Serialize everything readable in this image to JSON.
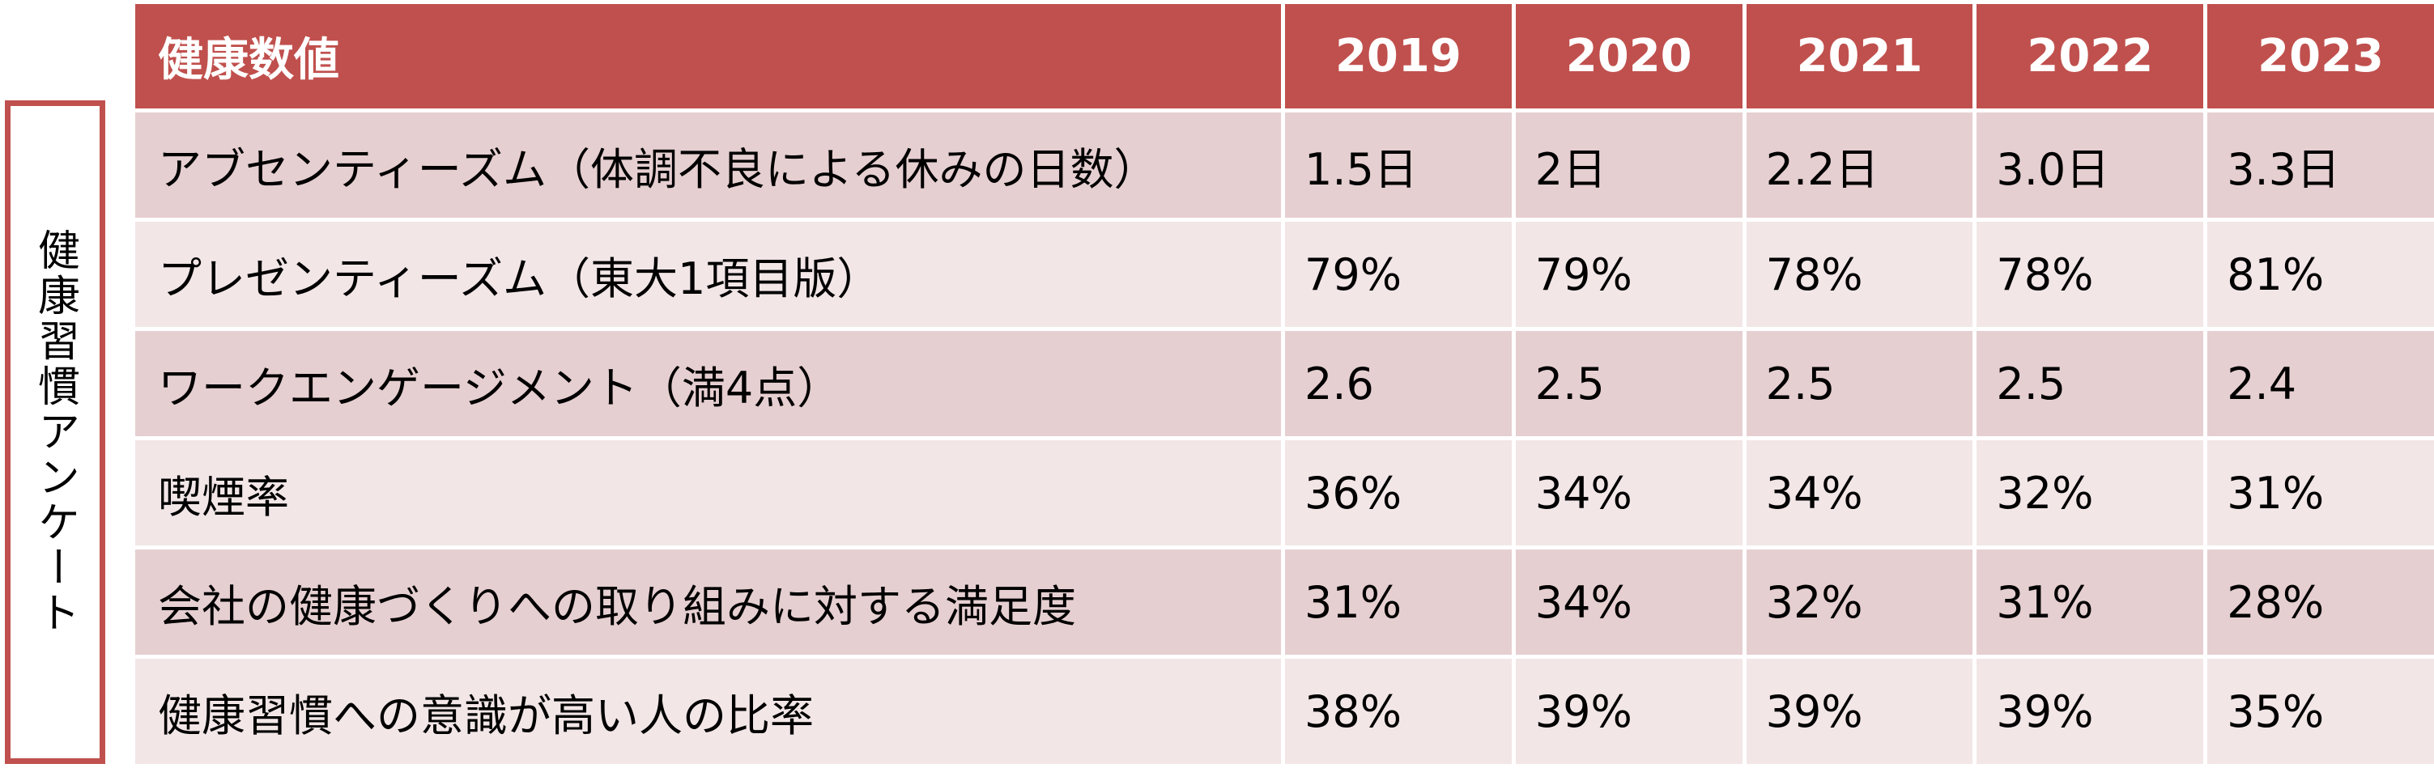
{
  "side_label": "健康習慣アンケート",
  "table": {
    "header_label": "健康数値",
    "years": [
      "2019",
      "2020",
      "2021",
      "2022",
      "2023"
    ],
    "rows": [
      {
        "label": "アブセンティーズム（体調不良による休みの日数）",
        "values": [
          "1.5日",
          "2日",
          "2.2日",
          "3.0日",
          "3.3日"
        ]
      },
      {
        "label": "プレゼンティーズム（東大1項目版）",
        "values": [
          "79%",
          "79%",
          "78%",
          "78%",
          "81%"
        ]
      },
      {
        "label": "ワークエンゲージメント（満4点）",
        "values": [
          "2.6",
          "2.5",
          "2.5",
          "2.5",
          "2.4"
        ]
      },
      {
        "label": "喫煙率",
        "values": [
          "36%",
          "34%",
          "34%",
          "32%",
          "31%"
        ]
      },
      {
        "label": "会社の健康づくりへの取り組みに対する満足度",
        "values": [
          "31%",
          "34%",
          "32%",
          "31%",
          "28%"
        ]
      },
      {
        "label": "健康習慣への意識が高い人の比率",
        "values": [
          "38%",
          "39%",
          "39%",
          "39%",
          "35%"
        ]
      }
    ]
  },
  "colors": {
    "header_bg": "#c0504d",
    "row_dark": "#e6cfd1",
    "row_light": "#f2e6e7",
    "side_border": "#c0504d"
  }
}
